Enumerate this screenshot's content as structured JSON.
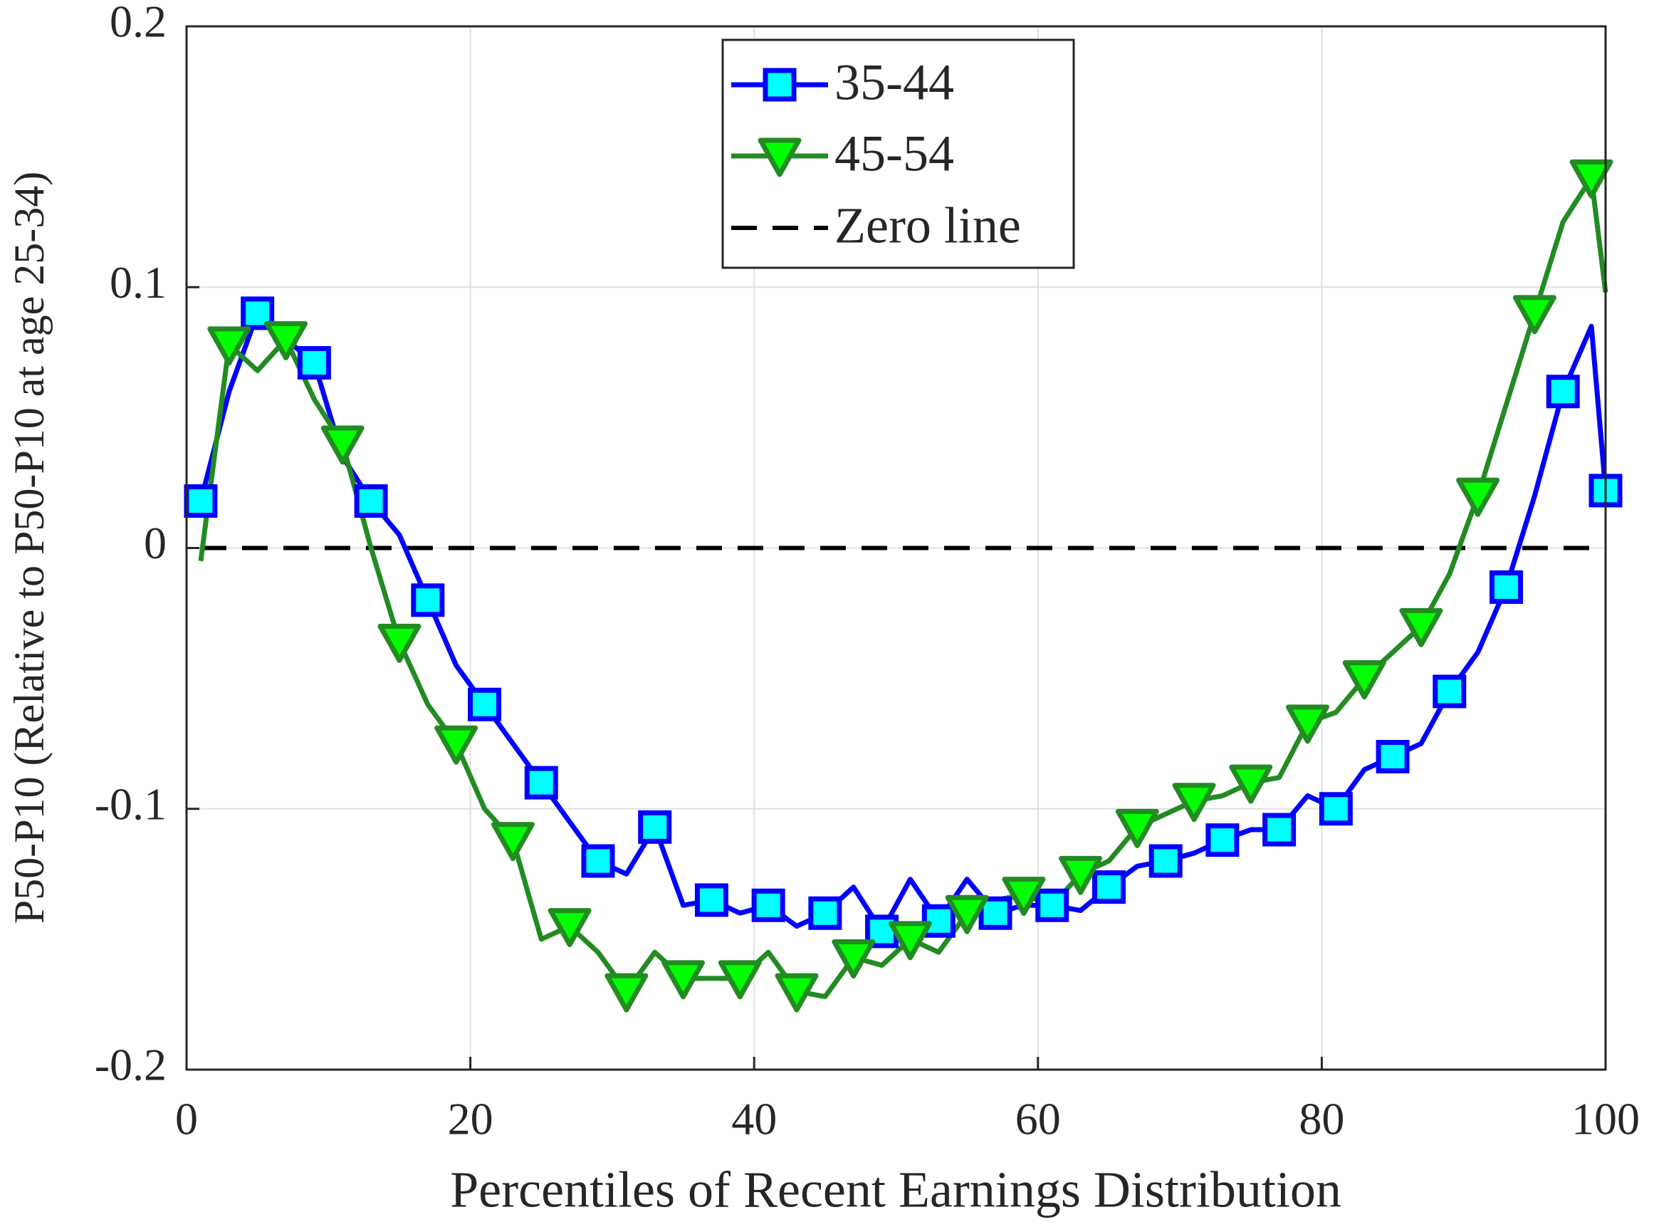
{
  "chart_data": {
    "type": "line",
    "xlabel": "Percentiles of Recent Earnings Distribution",
    "ylabel": "P50-P10 (Relative to P50-P10 at age 25-34)",
    "x": [
      1,
      3,
      5,
      7,
      9,
      11,
      13,
      15,
      17,
      19,
      21,
      23,
      25,
      27,
      29,
      31,
      33,
      35,
      37,
      39,
      41,
      43,
      45,
      47,
      49,
      51,
      53,
      55,
      57,
      59,
      61,
      63,
      65,
      67,
      69,
      71,
      73,
      75,
      77,
      79,
      81,
      83,
      85,
      87,
      89,
      91,
      93,
      95,
      97,
      99,
      100
    ],
    "series": [
      {
        "name": "35-44",
        "color": "#0000ff",
        "marker": "square",
        "marker_fill": "#00ffff",
        "values": [
          0.018,
          0.06,
          0.09,
          0.08,
          0.071,
          0.035,
          0.018,
          0.005,
          -0.02,
          -0.045,
          -0.06,
          -0.075,
          -0.09,
          -0.105,
          -0.12,
          -0.125,
          -0.107,
          -0.137,
          -0.135,
          -0.14,
          -0.137,
          -0.145,
          -0.14,
          -0.13,
          -0.147,
          -0.127,
          -0.143,
          -0.127,
          -0.14,
          -0.137,
          -0.137,
          -0.139,
          -0.13,
          -0.122,
          -0.12,
          -0.117,
          -0.112,
          -0.108,
          -0.108,
          -0.095,
          -0.1,
          -0.085,
          -0.08,
          -0.075,
          -0.055,
          -0.04,
          -0.015,
          0.02,
          0.06,
          0.085,
          0.022
        ]
      },
      {
        "name": "45-54",
        "color": "#228b22",
        "marker": "triangle",
        "marker_fill": "#00ff00",
        "values": [
          -0.005,
          0.078,
          0.068,
          0.08,
          0.057,
          0.04,
          0.0,
          -0.036,
          -0.06,
          -0.075,
          -0.1,
          -0.112,
          -0.15,
          -0.145,
          -0.155,
          -0.17,
          -0.155,
          -0.165,
          -0.165,
          -0.165,
          -0.155,
          -0.17,
          -0.172,
          -0.157,
          -0.16,
          -0.15,
          -0.155,
          -0.14,
          -0.135,
          -0.133,
          -0.137,
          -0.125,
          -0.12,
          -0.107,
          -0.102,
          -0.097,
          -0.095,
          -0.09,
          -0.088,
          -0.067,
          -0.063,
          -0.05,
          -0.04,
          -0.03,
          -0.01,
          0.02,
          0.055,
          0.09,
          0.125,
          0.142,
          0.098
        ]
      }
    ],
    "zero_line": {
      "name": "Zero line",
      "y": 0,
      "color": "#000000"
    },
    "xlim": [
      0,
      100
    ],
    "xticks": [
      0,
      20,
      40,
      60,
      80,
      100
    ],
    "ylim": [
      -0.2,
      0.2
    ],
    "yticks": [
      -0.2,
      -0.1,
      0,
      0.1,
      0.2
    ],
    "grid": true,
    "legend": "upper center"
  }
}
